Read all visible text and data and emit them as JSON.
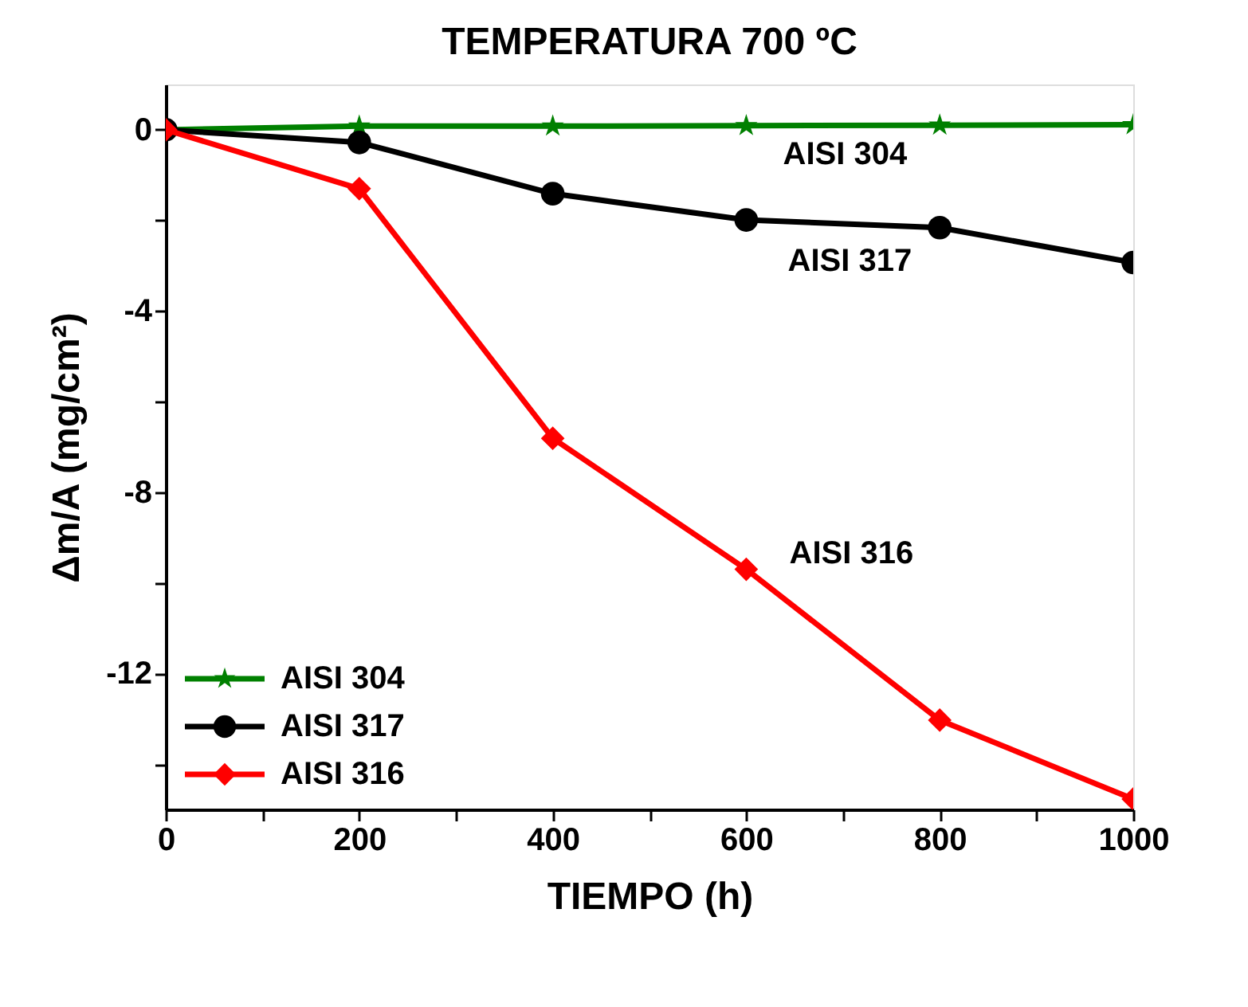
{
  "chart_data": {
    "type": "line",
    "title": "TEMPERATURA 700 ºC",
    "xlabel": "TIEMPO (h)",
    "ylabel": "Δm/A (mg/cm²)",
    "x": [
      0,
      200,
      400,
      600,
      800,
      1000
    ],
    "series": [
      {
        "name": "AISI 304",
        "color": "#008000",
        "marker": "star",
        "values": [
          0,
          0.08,
          0.08,
          0.09,
          0.1,
          0.11
        ]
      },
      {
        "name": "AISI 317",
        "color": "#000000",
        "marker": "circle",
        "values": [
          0,
          -0.28,
          -1.41,
          -1.99,
          -2.16,
          -2.93
        ]
      },
      {
        "name": "AISI 316",
        "color": "#ff0000",
        "marker": "diamond",
        "values": [
          0,
          -1.3,
          -6.81,
          -9.7,
          -13.03,
          -14.77
        ]
      }
    ],
    "xlim": [
      0,
      1000
    ],
    "xticks": [
      0,
      {
        "value": 100,
        "label": null
      },
      200,
      {
        "value": 300,
        "label": null
      },
      400,
      {
        "value": 500,
        "label": null
      },
      600,
      {
        "value": 700,
        "label": null
      },
      800,
      {
        "value": 900,
        "label": null
      },
      1000
    ],
    "ylim": [
      -15,
      1
    ],
    "yticks": [
      {
        "value": -14,
        "label": null
      },
      -12,
      {
        "value": -10,
        "label": null
      },
      -8,
      {
        "value": -6,
        "label": null
      },
      -4,
      {
        "value": -2,
        "label": null
      },
      0
    ],
    "annotations": [
      "AISI 304",
      "AISI 317",
      "AISI 316"
    ],
    "legend": "bottom left",
    "grid": false,
    "line_style": "solid"
  }
}
